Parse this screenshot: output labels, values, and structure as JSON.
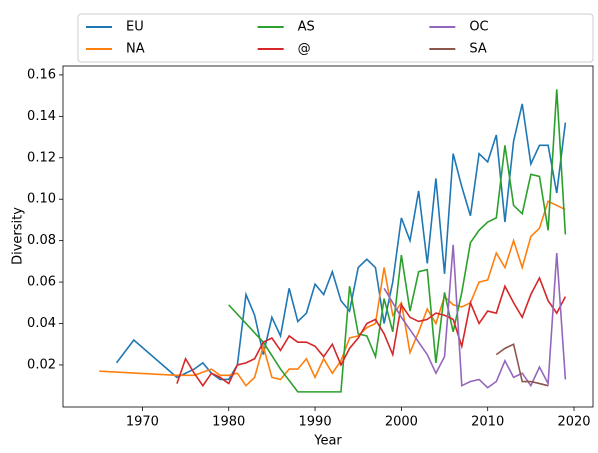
{
  "chart_data": {
    "type": "line",
    "x_label": "Year",
    "y_label": "Diversity",
    "xlim": [
      1960.8,
      2022.2
    ],
    "ylim": [
      -0.0003,
      0.1643
    ],
    "xticks": [
      1970,
      1980,
      1990,
      2000,
      2010,
      2020
    ],
    "yticks": [
      0.02,
      0.04,
      0.06,
      0.08,
      {
        "value": 0.1,
        "label": "0.10"
      },
      0.12,
      0.14,
      0.16
    ],
    "legend": "top",
    "series": [
      {
        "name": "EU",
        "color": "#1f77b4",
        "x": [
          1967,
          1969,
          1974,
          1976,
          1977,
          1978,
          1979,
          1980,
          1981,
          1982,
          1983,
          1984,
          1985,
          1986,
          1987,
          1988,
          1989,
          1990,
          1991,
          1992,
          1993,
          1994,
          1995,
          1996,
          1997,
          1998,
          1999,
          2000,
          2001,
          2002,
          2003,
          2004,
          2005,
          2006,
          2007,
          2008,
          2009,
          2010,
          2011,
          2012,
          2013,
          2014,
          2015,
          2016,
          2017,
          2018,
          2019
        ],
        "values": [
          0.021,
          0.032,
          0.014,
          0.018,
          0.021,
          0.016,
          0.013,
          0.013,
          0.02,
          0.054,
          0.044,
          0.025,
          0.043,
          0.034,
          0.057,
          0.041,
          0.045,
          0.059,
          0.054,
          0.065,
          0.051,
          0.046,
          0.067,
          0.071,
          0.067,
          0.04,
          0.06,
          0.091,
          0.08,
          0.104,
          0.069,
          0.11,
          0.064,
          0.122,
          0.106,
          0.092,
          0.122,
          0.118,
          0.131,
          0.089,
          0.128,
          0.146,
          0.117,
          0.126,
          0.126,
          0.103,
          0.137
        ]
      },
      {
        "name": "NA",
        "color": "#ff7f0e",
        "x": [
          1965,
          1974,
          1976,
          1978,
          1979,
          1980,
          1981,
          1982,
          1983,
          1984,
          1985,
          1986,
          1987,
          1988,
          1989,
          1990,
          1991,
          1992,
          1993,
          1994,
          1995,
          1996,
          1997,
          1998,
          1999,
          2000,
          2001,
          2002,
          2003,
          2004,
          2005,
          2006,
          2007,
          2008,
          2009,
          2010,
          2011,
          2012,
          2013,
          2014,
          2015,
          2016,
          2017,
          2018,
          2019
        ],
        "values": [
          0.017,
          0.015,
          0.015,
          0.018,
          0.015,
          0.015,
          0.016,
          0.01,
          0.014,
          0.029,
          0.014,
          0.013,
          0.018,
          0.018,
          0.023,
          0.014,
          0.023,
          0.016,
          0.022,
          0.033,
          0.034,
          0.038,
          0.04,
          0.067,
          0.044,
          0.05,
          0.026,
          0.036,
          0.047,
          0.04,
          0.053,
          0.049,
          0.048,
          0.05,
          0.06,
          0.061,
          0.074,
          0.067,
          0.08,
          0.067,
          0.082,
          0.086,
          0.099,
          0.097,
          0.095
        ]
      },
      {
        "name": "AS",
        "color": "#2ca02c",
        "x": [
          1980,
          1984,
          1986,
          1988,
          1993,
          1994,
          1995,
          1996,
          1997,
          1998,
          1999,
          2000,
          2001,
          2002,
          2003,
          2004,
          2005,
          2006,
          2007,
          2008,
          2009,
          2010,
          2011,
          2012,
          2013,
          2014,
          2015,
          2016,
          2017,
          2018,
          2019
        ],
        "values": [
          0.049,
          0.031,
          0.018,
          0.007,
          0.007,
          0.058,
          0.035,
          0.034,
          0.024,
          0.052,
          0.036,
          0.073,
          0.046,
          0.065,
          0.066,
          0.021,
          0.055,
          0.036,
          0.055,
          0.079,
          0.085,
          0.089,
          0.091,
          0.126,
          0.097,
          0.093,
          0.112,
          0.111,
          0.085,
          0.153,
          0.083
        ]
      },
      {
        "name": "@",
        "color": "#d62728",
        "x": [
          1974,
          1975,
          1976,
          1977,
          1978,
          1979,
          1980,
          1981,
          1982,
          1983,
          1984,
          1985,
          1986,
          1987,
          1988,
          1989,
          1990,
          1991,
          1992,
          1993,
          1994,
          1995,
          1996,
          1997,
          1998,
          1999,
          2000,
          2001,
          2002,
          2003,
          2004,
          2005,
          2006,
          2007,
          2008,
          2009,
          2010,
          2011,
          2012,
          2013,
          2014,
          2015,
          2016,
          2017,
          2018,
          2019
        ],
        "values": [
          0.011,
          0.023,
          0.016,
          0.01,
          0.016,
          0.014,
          0.011,
          0.02,
          0.021,
          0.023,
          0.031,
          0.033,
          0.027,
          0.034,
          0.031,
          0.031,
          0.029,
          0.024,
          0.03,
          0.02,
          0.028,
          0.033,
          0.04,
          0.042,
          0.035,
          0.025,
          0.049,
          0.043,
          0.041,
          0.042,
          0.045,
          0.044,
          0.042,
          0.029,
          0.05,
          0.04,
          0.046,
          0.045,
          0.058,
          0.05,
          0.043,
          0.054,
          0.062,
          0.051,
          0.045,
          0.053
        ]
      },
      {
        "name": "OC",
        "color": "#9467bd",
        "x": [
          1998,
          1999,
          2000,
          2001,
          2002,
          2003,
          2004,
          2005,
          2006,
          2007,
          2008,
          2009,
          2010,
          2011,
          2012,
          2013,
          2014,
          2015,
          2016,
          2017,
          2018,
          2019
        ],
        "values": [
          0.057,
          0.05,
          0.043,
          0.037,
          0.031,
          0.025,
          0.016,
          0.024,
          0.078,
          0.01,
          0.012,
          0.013,
          0.009,
          0.012,
          0.022,
          0.014,
          0.016,
          0.01,
          0.019,
          0.011,
          0.074,
          0.013
        ]
      },
      {
        "name": "SA",
        "color": "#8c564b",
        "x": [
          2011,
          2012,
          2013,
          2014,
          2015,
          2016,
          2017
        ],
        "values": [
          0.025,
          0.028,
          0.03,
          0.012,
          0.012,
          0.011,
          0.01
        ]
      }
    ]
  }
}
